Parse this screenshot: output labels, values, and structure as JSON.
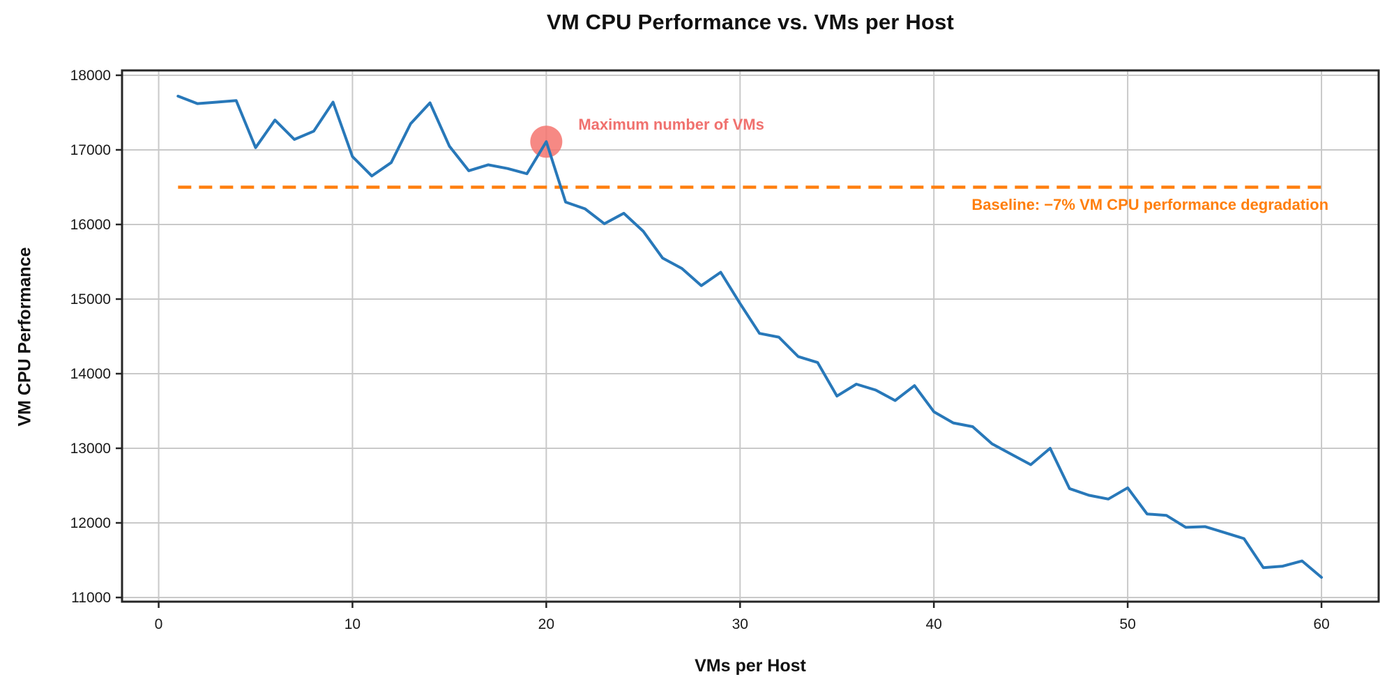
{
  "chart_data": {
    "type": "line",
    "title": "VM CPU Performance vs. VMs per Host",
    "xlabel": "VMs per Host",
    "ylabel": "VM CPU Performance",
    "grid": true,
    "legend": "none",
    "xlim": [
      -1.89,
      62.95
    ],
    "ylim": [
      10944,
      18065
    ],
    "xticks": [
      0,
      10,
      20,
      30,
      40,
      50,
      60
    ],
    "yticks": [
      11000,
      12000,
      13000,
      14000,
      15000,
      16000,
      17000,
      18000
    ],
    "x": [
      1,
      2,
      3,
      4,
      5,
      6,
      7,
      8,
      9,
      10,
      11,
      12,
      13,
      14,
      15,
      16,
      17,
      18,
      19,
      20,
      21,
      22,
      23,
      24,
      25,
      26,
      27,
      28,
      29,
      30,
      31,
      32,
      33,
      34,
      35,
      36,
      37,
      38,
      39,
      40,
      41,
      42,
      43,
      44,
      45,
      46,
      47,
      48,
      49,
      50,
      51,
      52,
      53,
      54,
      55,
      56,
      57,
      58,
      59,
      60
    ],
    "series": [
      {
        "name": "VM CPU Performance",
        "color": "#2878b9",
        "values": [
          17720,
          17620,
          17640,
          17660,
          17030,
          17400,
          17140,
          17250,
          17640,
          16910,
          16650,
          16830,
          17350,
          17630,
          17050,
          16720,
          16800,
          16750,
          16680,
          17110,
          16300,
          16210,
          16010,
          16150,
          15910,
          15550,
          15410,
          15180,
          15360,
          14940,
          14540,
          14490,
          14230,
          14150,
          13700,
          13860,
          13780,
          13640,
          13840,
          13490,
          13340,
          13290,
          13060,
          12920,
          12780,
          13000,
          12460,
          12370,
          12320,
          12470,
          12120,
          12100,
          11940,
          11950,
          11870,
          11790,
          11400,
          11420,
          11490,
          11270
        ]
      }
    ],
    "baseline": {
      "value": 16500,
      "x_start": 1,
      "x_end": 60,
      "label": "Baseline: −7% VM CPU performance degradation",
      "color": "#ff7f0e",
      "style": "dashed"
    },
    "annotation": {
      "x": 20,
      "y": 17110,
      "label": "Maximum number of VMs",
      "marker": "circle",
      "marker_color": "#f4746f",
      "text_color": "#f0716e"
    },
    "colors": {
      "grid": "#c9c9c9",
      "spine": "#262626",
      "tick_label": "#1a1a1a",
      "title": "#111111"
    }
  }
}
